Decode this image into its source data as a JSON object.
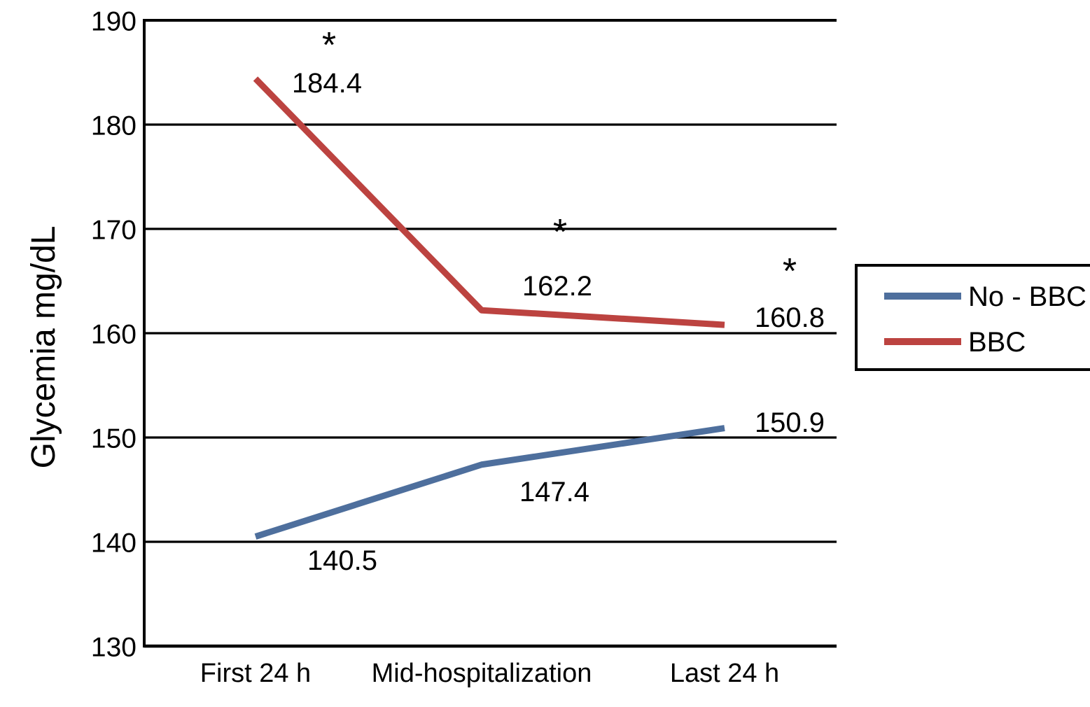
{
  "chart_data": {
    "type": "line",
    "title": "",
    "xlabel": "",
    "ylabel": "Glycemia mg/dL",
    "categories": [
      "First 24 h",
      "Mid-hospitalization",
      "Last 24 h"
    ],
    "series": [
      {
        "name": "No - BBC",
        "color": "#4e6f9d",
        "values": [
          140.5,
          147.4,
          150.9
        ]
      },
      {
        "name": "BBC",
        "color": "#bc4340",
        "values": [
          184.4,
          162.2,
          160.8
        ]
      }
    ],
    "ylim": [
      130,
      190
    ],
    "yticks": [
      130,
      140,
      150,
      160,
      170,
      180,
      190
    ],
    "ytick_step": 10,
    "grid": true,
    "gridline_color": "#000000",
    "axis_color": "#000000",
    "legend_position": "right",
    "data_labels": true,
    "annotations": [
      {
        "text": "*",
        "series": "BBC",
        "category_index": 0
      },
      {
        "text": "*",
        "series": "BBC",
        "category_index": 1
      },
      {
        "text": "*",
        "series": "BBC",
        "category_index": 2
      }
    ]
  }
}
